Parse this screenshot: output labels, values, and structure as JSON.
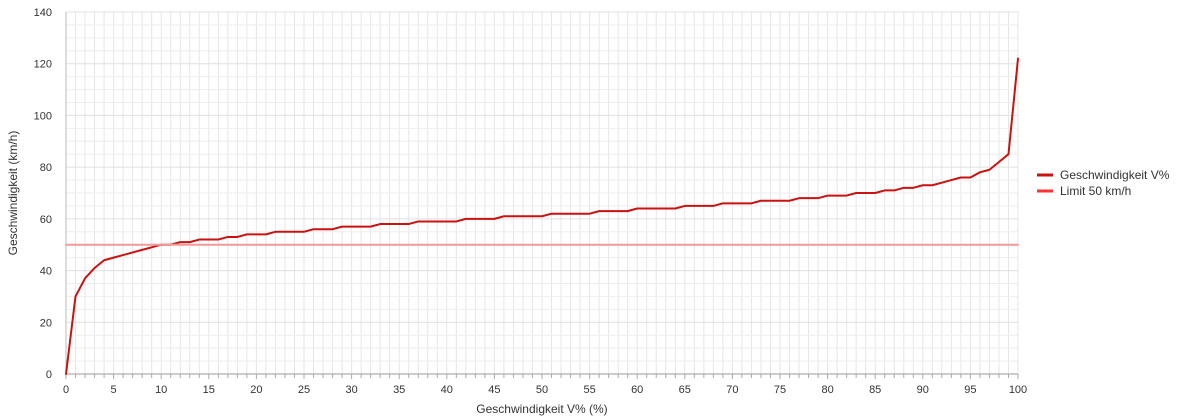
{
  "chart_data": {
    "type": "line",
    "xlabel": "Geschwindigkeit V% (%)",
    "ylabel": "Geschwindigkeit (km/h)",
    "xlim": [
      0,
      100
    ],
    "ylim": [
      0,
      140
    ],
    "x_ticks": [
      0,
      5,
      10,
      15,
      20,
      25,
      30,
      35,
      40,
      45,
      50,
      55,
      60,
      65,
      70,
      75,
      80,
      85,
      90,
      95,
      100
    ],
    "y_ticks": [
      0,
      20,
      40,
      60,
      80,
      100,
      120,
      140
    ],
    "grid": true,
    "legend_position": "right",
    "series": [
      {
        "name": "Geschwindigkeit V%",
        "color": "#cc1111",
        "x": [
          0,
          1,
          2,
          3,
          4,
          5,
          6,
          7,
          8,
          9,
          10,
          11,
          12,
          13,
          14,
          15,
          16,
          17,
          18,
          19,
          20,
          21,
          22,
          23,
          24,
          25,
          26,
          27,
          28,
          29,
          30,
          31,
          32,
          33,
          34,
          35,
          36,
          37,
          38,
          39,
          40,
          41,
          42,
          43,
          44,
          45,
          46,
          47,
          48,
          49,
          50,
          51,
          52,
          53,
          54,
          55,
          56,
          57,
          58,
          59,
          60,
          61,
          62,
          63,
          64,
          65,
          66,
          67,
          68,
          69,
          70,
          71,
          72,
          73,
          74,
          75,
          76,
          77,
          78,
          79,
          80,
          81,
          82,
          83,
          84,
          85,
          86,
          87,
          88,
          89,
          90,
          91,
          92,
          93,
          94,
          95,
          96,
          97,
          98,
          99,
          100
        ],
        "values": [
          0,
          30,
          37,
          41,
          44,
          45,
          46,
          47,
          48,
          49,
          50,
          50,
          51,
          51,
          52,
          52,
          52,
          53,
          53,
          54,
          54,
          54,
          55,
          55,
          55,
          55,
          56,
          56,
          56,
          57,
          57,
          57,
          57,
          58,
          58,
          58,
          58,
          59,
          59,
          59,
          59,
          59,
          60,
          60,
          60,
          60,
          61,
          61,
          61,
          61,
          61,
          62,
          62,
          62,
          62,
          62,
          63,
          63,
          63,
          63,
          64,
          64,
          64,
          64,
          64,
          65,
          65,
          65,
          65,
          66,
          66,
          66,
          66,
          67,
          67,
          67,
          67,
          68,
          68,
          68,
          69,
          69,
          69,
          70,
          70,
          70,
          71,
          71,
          72,
          72,
          73,
          73,
          74,
          75,
          76,
          76,
          78,
          79,
          82,
          85,
          122
        ]
      },
      {
        "name": "Limit 50 km/h",
        "color": "#f29a9a",
        "x": [
          0,
          100
        ],
        "values": [
          50,
          50
        ]
      }
    ],
    "legend_colors": [
      "#cc1111",
      "#ff3333"
    ]
  }
}
